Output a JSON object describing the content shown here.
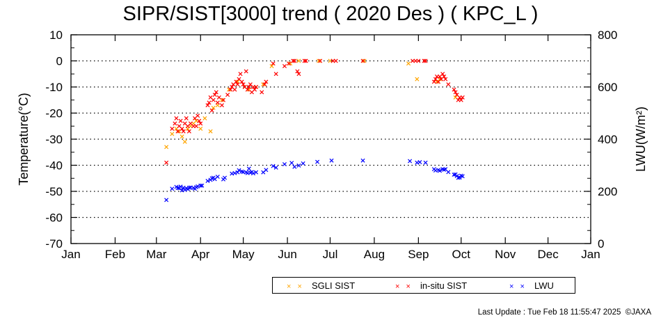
{
  "title": "SIPR/SIST[3000] trend ( 2020 Des ) ( KPC_L )",
  "footer": "Last Update : Tue Feb 18 11:55:47 2025  ©JAXA",
  "colors": {
    "sgli": "#ffa500",
    "insitu": "#ff0000",
    "lwu": "#0000ff",
    "axis": "#000000",
    "grid": "#000000"
  },
  "chart_data": {
    "type": "scatter",
    "title": "SIPR/SIST[3000] trend ( 2020 Des ) ( KPC_L )",
    "ylabel": "Temperature(°C)",
    "y2label": "LWU(W/m²)",
    "ylim": [
      -70,
      10
    ],
    "y2lim": [
      0,
      800
    ],
    "xlim": [
      1,
      366
    ],
    "yticks": [
      10,
      0,
      -10,
      -20,
      -30,
      -40,
      -50,
      -60,
      -70
    ],
    "y2ticks": [
      800,
      600,
      400,
      200,
      0
    ],
    "month_ticks": [
      {
        "day": 1,
        "label": "Jan"
      },
      {
        "day": 32,
        "label": "Feb"
      },
      {
        "day": 61,
        "label": "Mar"
      },
      {
        "day": 92,
        "label": "Apr"
      },
      {
        "day": 122,
        "label": "May"
      },
      {
        "day": 153,
        "label": "Jun"
      },
      {
        "day": 183,
        "label": "Jul"
      },
      {
        "day": 214,
        "label": "Aug"
      },
      {
        "day": 245,
        "label": "Sep"
      },
      {
        "day": 275,
        "label": "Oct"
      },
      {
        "day": 306,
        "label": "Nov"
      },
      {
        "day": 336,
        "label": "Dec"
      },
      {
        "day": 366,
        "label": "Jan"
      }
    ],
    "grid": "horizontal dotted",
    "legend_position": "bottom-right",
    "series": [
      {
        "name": "SGLI SIST",
        "axis": "left",
        "marker": "x",
        "color": "#ffa500",
        "points": [
          [
            68,
            -33
          ],
          [
            72,
            -28
          ],
          [
            75,
            -26
          ],
          [
            77,
            -27
          ],
          [
            79,
            -29
          ],
          [
            81,
            -31
          ],
          [
            83,
            -26
          ],
          [
            85,
            -25
          ],
          [
            87,
            -24
          ],
          [
            89,
            -23
          ],
          [
            92,
            -26
          ],
          [
            95,
            -22
          ],
          [
            99,
            -27
          ],
          [
            101,
            -18
          ],
          [
            104,
            -17
          ],
          [
            107,
            -15
          ],
          [
            112,
            -11
          ],
          [
            118,
            -8
          ],
          [
            123,
            -10
          ],
          [
            126,
            -11
          ],
          [
            131,
            -10
          ],
          [
            136,
            -9
          ],
          [
            142,
            -2
          ],
          [
            155,
            -1
          ],
          [
            161,
            0
          ],
          [
            175,
            0
          ],
          [
            183,
            0
          ],
          [
            207,
            0
          ],
          [
            238,
            -1
          ],
          [
            244,
            -7
          ],
          [
            258,
            -8
          ],
          [
            260,
            -7
          ],
          [
            271,
            -14
          ]
        ]
      },
      {
        "name": "in-situ SIST",
        "axis": "left",
        "marker": "x",
        "color": "#ff0000",
        "points": [
          [
            68,
            -39
          ],
          [
            72,
            -26
          ],
          [
            74,
            -24
          ],
          [
            75,
            -22
          ],
          [
            76,
            -27
          ],
          [
            77,
            -25
          ],
          [
            78,
            -23
          ],
          [
            79,
            -26
          ],
          [
            80,
            -27
          ],
          [
            81,
            -24
          ],
          [
            82,
            -22
          ],
          [
            83,
            -25
          ],
          [
            84,
            -27
          ],
          [
            85,
            -24
          ],
          [
            87,
            -25
          ],
          [
            88,
            -22
          ],
          [
            89,
            -25
          ],
          [
            90,
            -21
          ],
          [
            91,
            -23
          ],
          [
            92,
            -24
          ],
          [
            97,
            -17
          ],
          [
            98,
            -16
          ],
          [
            99,
            -14
          ],
          [
            100,
            -19
          ],
          [
            101,
            -15
          ],
          [
            102,
            -13
          ],
          [
            103,
            -12
          ],
          [
            104,
            -16
          ],
          [
            105,
            -14
          ],
          [
            107,
            -17
          ],
          [
            108,
            -15
          ],
          [
            111,
            -13
          ],
          [
            113,
            -11
          ],
          [
            114,
            -10
          ],
          [
            115,
            -9
          ],
          [
            116,
            -11
          ],
          [
            117,
            -8
          ],
          [
            118,
            -9
          ],
          [
            119,
            -7
          ],
          [
            120,
            -5
          ],
          [
            121,
            -8
          ],
          [
            122,
            -9
          ],
          [
            123,
            -10
          ],
          [
            124,
            -4
          ],
          [
            125,
            -11
          ],
          [
            126,
            -10
          ],
          [
            127,
            -9
          ],
          [
            128,
            -12
          ],
          [
            129,
            -10
          ],
          [
            130,
            -11
          ],
          [
            131,
            -10
          ],
          [
            135,
            -12
          ],
          [
            137,
            -9
          ],
          [
            138,
            -8
          ],
          [
            143,
            -1
          ],
          [
            145,
            -5
          ],
          [
            151,
            -2
          ],
          [
            154,
            -1
          ],
          [
            157,
            0
          ],
          [
            158,
            0
          ],
          [
            160,
            -4
          ],
          [
            161,
            -5
          ],
          [
            165,
            0
          ],
          [
            166,
            0
          ],
          [
            176,
            0
          ],
          [
            185,
            0
          ],
          [
            187,
            0
          ],
          [
            206,
            0
          ],
          [
            241,
            0
          ],
          [
            243,
            0
          ],
          [
            245,
            0
          ],
          [
            249,
            0
          ],
          [
            250,
            0
          ],
          [
            256,
            -8
          ],
          [
            257,
            -7
          ],
          [
            258,
            -6
          ],
          [
            259,
            -8
          ],
          [
            260,
            -6
          ],
          [
            261,
            -7
          ],
          [
            262,
            -5
          ],
          [
            263,
            -6
          ],
          [
            264,
            -7
          ],
          [
            266,
            -9
          ],
          [
            270,
            -11
          ],
          [
            271,
            -12
          ],
          [
            272,
            -13
          ],
          [
            273,
            -15
          ],
          [
            274,
            -14
          ],
          [
            275,
            -15
          ],
          [
            276,
            -14
          ]
        ]
      },
      {
        "name": "LWU",
        "axis": "right",
        "marker": "x",
        "color": "#0000ff",
        "points": [
          [
            68,
            167
          ],
          [
            72,
            210
          ],
          [
            75,
            217
          ],
          [
            76,
            213
          ],
          [
            77,
            212
          ],
          [
            78,
            218
          ],
          [
            79,
            204
          ],
          [
            80,
            214
          ],
          [
            81,
            206
          ],
          [
            82,
            211
          ],
          [
            83,
            209
          ],
          [
            84,
            214
          ],
          [
            85,
            215
          ],
          [
            87,
            213
          ],
          [
            88,
            210
          ],
          [
            89,
            216
          ],
          [
            90,
            219
          ],
          [
            92,
            222
          ],
          [
            93,
            222
          ],
          [
            97,
            240
          ],
          [
            99,
            244
          ],
          [
            100,
            250
          ],
          [
            101,
            252
          ],
          [
            102,
            247
          ],
          [
            104,
            256
          ],
          [
            108,
            246
          ],
          [
            109,
            252
          ],
          [
            114,
            268
          ],
          [
            116,
            270
          ],
          [
            118,
            273
          ],
          [
            119,
            281
          ],
          [
            121,
            276
          ],
          [
            122,
            274
          ],
          [
            124,
            273
          ],
          [
            125,
            270
          ],
          [
            126,
            287
          ],
          [
            127,
            272
          ],
          [
            128,
            274
          ],
          [
            129,
            269
          ],
          [
            131,
            273
          ],
          [
            136,
            273
          ],
          [
            138,
            282
          ],
          [
            143,
            297
          ],
          [
            145,
            291
          ],
          [
            151,
            304
          ],
          [
            156,
            309
          ],
          [
            158,
            294
          ],
          [
            161,
            299
          ],
          [
            164,
            307
          ],
          [
            174,
            313
          ],
          [
            184,
            318
          ],
          [
            206,
            318
          ],
          [
            239,
            316
          ],
          [
            244,
            310
          ],
          [
            246,
            312
          ],
          [
            250,
            310
          ],
          [
            256,
            285
          ],
          [
            257,
            280
          ],
          [
            259,
            282
          ],
          [
            260,
            279
          ],
          [
            262,
            285
          ],
          [
            263,
            283
          ],
          [
            264,
            285
          ],
          [
            266,
            274
          ],
          [
            270,
            264
          ],
          [
            271,
            265
          ],
          [
            272,
            259
          ],
          [
            273,
            252
          ],
          [
            274,
            253
          ],
          [
            275,
            260
          ],
          [
            276,
            258
          ]
        ]
      }
    ]
  }
}
